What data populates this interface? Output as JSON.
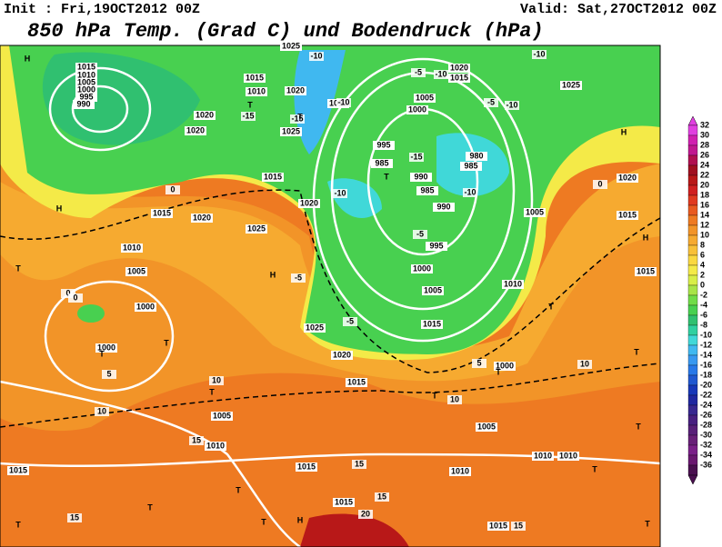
{
  "header": {
    "init": "Init : Fri,19OCT2012 00Z",
    "valid": "Valid: Sat,27OCT2012 00Z",
    "title": "850 hPa Temp. (Grad C) und Bodendruck (hPa)"
  },
  "legend": {
    "values": [
      32,
      30,
      28,
      26,
      24,
      22,
      20,
      18,
      16,
      14,
      12,
      10,
      8,
      6,
      4,
      2,
      0,
      -2,
      -4,
      -6,
      -8,
      -10,
      -12,
      -14,
      -16,
      -18,
      -20,
      -22,
      -24,
      -26,
      -28,
      -30,
      -32,
      -34,
      -36
    ],
    "colors": [
      "#e040e0",
      "#d020b0",
      "#c01890",
      "#b01050",
      "#a01020",
      "#b81818",
      "#d02020",
      "#e03a20",
      "#e85a20",
      "#ee7a22",
      "#f29428",
      "#f6aa30",
      "#f8c038",
      "#fad840",
      "#f4ea48",
      "#d8ee48",
      "#a8e448",
      "#70dc48",
      "#48d050",
      "#30c070",
      "#30d0a0",
      "#40d8d8",
      "#40b8f0",
      "#3898f0",
      "#2878e8",
      "#2058d0",
      "#1838b8",
      "#2028a0",
      "#382890",
      "#482080",
      "#582078",
      "#682078",
      "#7a2088",
      "#6a1870",
      "#4a1050"
    ]
  },
  "map_labels": [
    "1015",
    "1010",
    "1005",
    "1000",
    "995",
    "990",
    "1025",
    "1015",
    "1010",
    "1020",
    "1025",
    "1020",
    "1020",
    "1015",
    "1020",
    "1015",
    "1020",
    "1025",
    "1010",
    "1005",
    "1000",
    "1000",
    "1025",
    "1020",
    "1015",
    "1005",
    "1010",
    "1015",
    "1015",
    "1010",
    "1015",
    "1015",
    "1010",
    "1010",
    "1005",
    "1000",
    "1020",
    "1015",
    "1025",
    "995",
    "985",
    "990",
    "985",
    "990",
    "995",
    "1000",
    "1005",
    "1010",
    "1015",
    "1005",
    "1015",
    "1015",
    "1020",
    "980",
    "985",
    "1000",
    "1005",
    "1010",
    "-10",
    "-10",
    "-15",
    "-15",
    "-5",
    "-10",
    "-5",
    "-10",
    "-10",
    "-15",
    "-10",
    "-10",
    "-5",
    "-5",
    "-5",
    "0",
    "0",
    "5",
    "5",
    "10",
    "10",
    "10",
    "10",
    "15",
    "15",
    "15",
    "15",
    "15",
    "20",
    "0",
    "0",
    "H",
    "H",
    "H",
    "H",
    "H",
    "H",
    "T",
    "T",
    "T",
    "T",
    "T",
    "T",
    "T",
    "T",
    "T",
    "T",
    "T",
    "T",
    "T",
    "T",
    "T",
    "T",
    "T",
    "T"
  ]
}
